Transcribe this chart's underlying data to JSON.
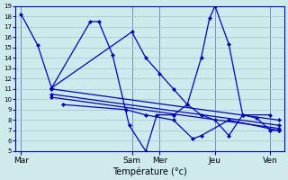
{
  "background_color": "#ceeaea",
  "grid_color": "#a0c8ce",
  "line_color": "#0000cc",
  "xlabel": "Température (°c)",
  "xtick_labels": [
    "Mar",
    "Sam",
    "Mer",
    "Jeu",
    "Ven"
  ],
  "xtick_positions": [
    0,
    4,
    5,
    7,
    9
  ],
  "xlim": [
    -0.2,
    9.5
  ],
  "ylim": [
    5,
    19
  ],
  "yticks": [
    5,
    6,
    7,
    8,
    9,
    10,
    11,
    12,
    13,
    14,
    15,
    16,
    17,
    18,
    19
  ],
  "lines": [
    {
      "x": [
        0,
        0.6,
        1.1,
        2.5,
        2.8,
        3.3,
        3.9,
        4.5,
        4.9,
        5.5
      ],
      "y": [
        18.2,
        15.2,
        11.1,
        17.5,
        17.5,
        14.3,
        7.5,
        5.0,
        8.5,
        8.5
      ]
    },
    {
      "x": [
        1.1,
        4.0,
        4.5,
        5.0,
        5.5,
        6.0,
        6.5,
        7.0,
        7.5,
        8.0,
        9.0
      ],
      "y": [
        11.1,
        16.5,
        14.0,
        12.5,
        11.0,
        9.5,
        8.5,
        8.0,
        6.5,
        8.5,
        8.5
      ]
    },
    {
      "x": [
        5.5,
        6.0,
        6.5,
        6.8,
        7.0,
        7.5,
        8.0,
        8.5,
        9.0,
        9.3
      ],
      "y": [
        8.5,
        9.5,
        14.0,
        17.8,
        19.0,
        15.3,
        8.5,
        8.2,
        7.0,
        7.0
      ]
    },
    {
      "x": [
        1.1,
        9.3
      ],
      "y": [
        11.0,
        8.0
      ]
    },
    {
      "x": [
        1.1,
        9.3
      ],
      "y": [
        10.5,
        7.5
      ]
    },
    {
      "x": [
        1.1,
        9.3
      ],
      "y": [
        10.2,
        7.2
      ]
    },
    {
      "x": [
        1.5,
        3.8,
        4.5,
        5.5,
        6.2,
        6.5,
        7.5,
        9.3
      ],
      "y": [
        9.5,
        9.0,
        8.5,
        8.0,
        6.2,
        6.5,
        8.0,
        7.0
      ]
    }
  ]
}
